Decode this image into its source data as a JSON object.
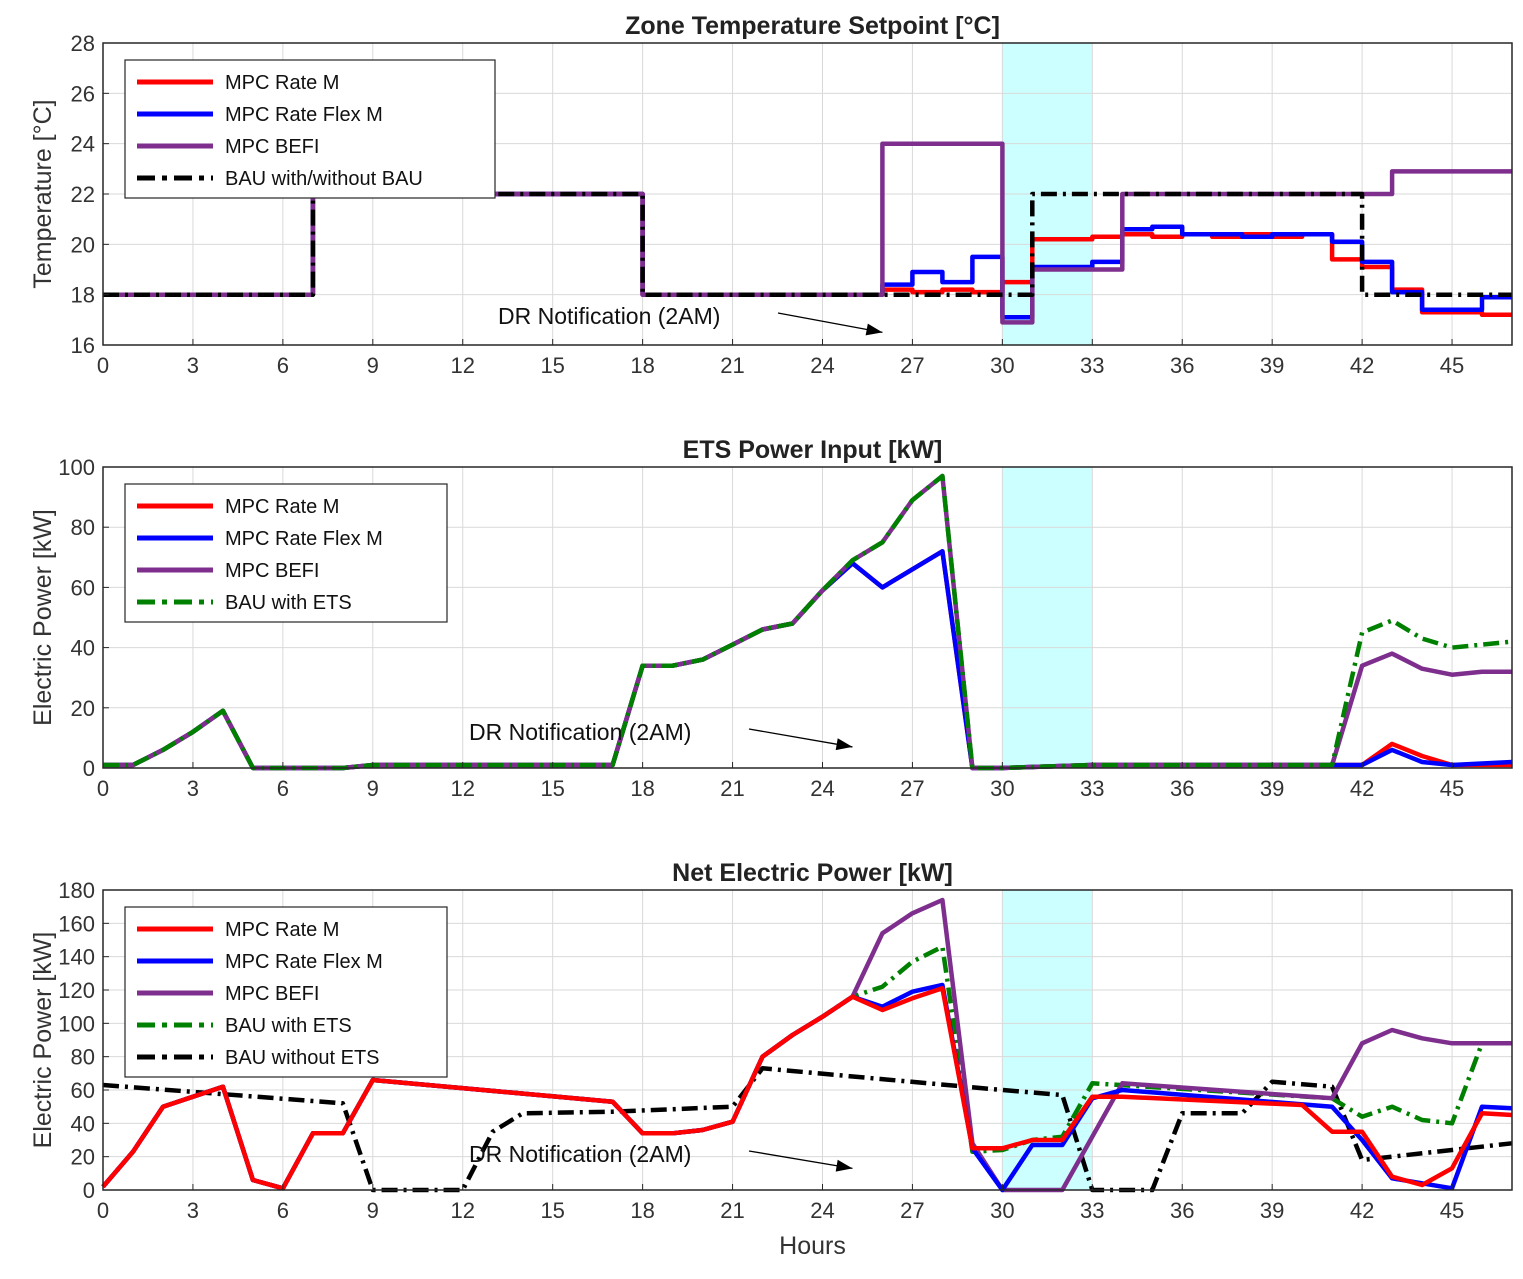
{
  "chart_data": [
    {
      "type": "line",
      "title": "Zone Temperature Setpoint [°C]",
      "xlabel": "",
      "ylabel": "Temperature [°C]",
      "xlim": [
        0,
        47
      ],
      "ylim": [
        16,
        28
      ],
      "xticks": [
        0,
        3,
        6,
        9,
        12,
        15,
        18,
        21,
        24,
        27,
        30,
        33,
        36,
        39,
        42,
        45
      ],
      "yticks": [
        16,
        18,
        20,
        22,
        24,
        26,
        28
      ],
      "shaded_region": [
        30,
        33
      ],
      "annotation": {
        "text": "DR Notification (2AM)",
        "arrow_to": [
          26,
          16.5
        ]
      },
      "legend": [
        "MPC Rate M",
        "MPC Rate Flex M",
        "MPC BEFI",
        "BAU with/without BAU"
      ],
      "series": [
        {
          "name": "MPC Rate M",
          "color": "#ff0000",
          "width": 4.5,
          "dash": "",
          "step": true,
          "x": [
            0,
            7,
            18,
            26,
            27,
            28,
            29,
            30,
            31,
            32,
            33,
            34,
            35,
            36,
            37,
            38,
            39,
            40,
            41,
            42,
            43,
            44,
            45,
            46,
            47
          ],
          "y": [
            18,
            22,
            18,
            18.2,
            18.1,
            18.2,
            18.1,
            18.5,
            20.2,
            20.2,
            20.3,
            20.4,
            20.3,
            20.4,
            20.3,
            20.4,
            20.3,
            20.4,
            19.4,
            19.1,
            18.2,
            17.3,
            17.3,
            17.2,
            17.2
          ]
        },
        {
          "name": "MPC Rate Flex M",
          "color": "#0000ff",
          "width": 4.5,
          "dash": "",
          "step": true,
          "x": [
            0,
            7,
            18,
            26,
            27,
            28,
            29,
            30,
            31,
            32,
            33,
            34,
            35,
            36,
            37,
            38,
            39,
            40,
            41,
            42,
            43,
            44,
            45,
            46,
            47
          ],
          "y": [
            18,
            22,
            18,
            18.4,
            18.9,
            18.5,
            19.5,
            17.1,
            19.1,
            19.1,
            19.3,
            20.6,
            20.7,
            20.4,
            20.4,
            20.3,
            20.4,
            20.4,
            20.1,
            19.3,
            18.1,
            17.4,
            17.4,
            17.9,
            17.9
          ]
        },
        {
          "name": "MPC BEFI",
          "color": "#7e2f8e",
          "width": 4.5,
          "dash": "",
          "step": true,
          "x": [
            0,
            7,
            18,
            26,
            30,
            31,
            33,
            34,
            42,
            43,
            47
          ],
          "y": [
            18,
            22,
            18,
            24,
            16.9,
            19,
            19,
            22,
            22,
            22.9,
            22.9
          ]
        },
        {
          "name": "BAU with/without BAU",
          "color": "#000000",
          "width": 4.5,
          "dash": "16,6,3,6",
          "step": true,
          "x": [
            0,
            7,
            18,
            30,
            31,
            42,
            47
          ],
          "y": [
            18,
            22,
            18,
            18,
            22,
            18,
            18
          ]
        }
      ]
    },
    {
      "type": "line",
      "title": "ETS Power Input [kW]",
      "xlabel": "",
      "ylabel": "Electric Power [kW]",
      "xlim": [
        0,
        47
      ],
      "ylim": [
        0,
        100
      ],
      "xticks": [
        0,
        3,
        6,
        9,
        12,
        15,
        18,
        21,
        24,
        27,
        30,
        33,
        36,
        39,
        42,
        45
      ],
      "yticks": [
        0,
        20,
        40,
        60,
        80,
        100
      ],
      "shaded_region": [
        30,
        33
      ],
      "annotation": {
        "text": "DR Notification (2AM)",
        "arrow_to": [
          25,
          7
        ]
      },
      "legend": [
        "MPC Rate M",
        "MPC Rate Flex M",
        "MPC BEFI",
        "BAU with ETS"
      ],
      "series": [
        {
          "name": "MPC Rate M",
          "color": "#ff0000",
          "width": 4.5,
          "dash": "",
          "step": false,
          "x": [
            0,
            1,
            2,
            3,
            4,
            5,
            6,
            7,
            8,
            9,
            17,
            18,
            19,
            20,
            21,
            22,
            23,
            24,
            25,
            26,
            27,
            28,
            29,
            30,
            33,
            41,
            42,
            43,
            44,
            45,
            47
          ],
          "y": [
            1,
            1,
            6,
            12,
            19,
            0,
            0,
            0,
            0,
            1,
            1,
            34,
            34,
            36,
            41,
            46,
            48,
            59,
            68,
            60,
            66,
            72,
            0,
            0,
            1,
            1,
            1,
            8,
            4,
            1,
            1
          ]
        },
        {
          "name": "MPC Rate Flex M",
          "color": "#0000ff",
          "width": 4.5,
          "dash": "",
          "step": false,
          "x": [
            0,
            1,
            2,
            3,
            4,
            5,
            6,
            7,
            8,
            9,
            17,
            18,
            19,
            20,
            21,
            22,
            23,
            24,
            25,
            26,
            27,
            28,
            29,
            30,
            33,
            41,
            42,
            43,
            44,
            45,
            47
          ],
          "y": [
            1,
            1,
            6,
            12,
            19,
            0,
            0,
            0,
            0,
            1,
            1,
            34,
            34,
            36,
            41,
            46,
            48,
            59,
            68,
            60,
            66,
            72,
            0,
            0,
            1,
            1,
            1,
            6,
            2,
            1,
            2
          ]
        },
        {
          "name": "MPC BEFI",
          "color": "#7e2f8e",
          "width": 4.5,
          "dash": "",
          "step": false,
          "x": [
            0,
            1,
            2,
            3,
            4,
            5,
            6,
            7,
            8,
            9,
            17,
            18,
            19,
            20,
            21,
            22,
            23,
            24,
            25,
            26,
            27,
            28,
            29,
            30,
            33,
            41,
            42,
            43,
            44,
            45,
            46,
            47
          ],
          "y": [
            1,
            1,
            6,
            12,
            19,
            0,
            0,
            0,
            0,
            1,
            1,
            34,
            34,
            36,
            41,
            46,
            48,
            59,
            69,
            75,
            89,
            97,
            0,
            0,
            1,
            1,
            34,
            38,
            33,
            31,
            32,
            32
          ]
        },
        {
          "name": "BAU with ETS",
          "color": "#008000",
          "width": 4.5,
          "dash": "16,6,3,6",
          "step": false,
          "x": [
            0,
            1,
            2,
            3,
            4,
            5,
            6,
            7,
            8,
            9,
            17,
            18,
            19,
            20,
            21,
            22,
            23,
            24,
            25,
            26,
            27,
            28,
            29,
            30,
            33,
            41,
            42,
            43,
            44,
            45,
            46,
            47
          ],
          "y": [
            1,
            1,
            6,
            12,
            19,
            0,
            0,
            0,
            0,
            1,
            1,
            34,
            34,
            36,
            41,
            46,
            48,
            59,
            69,
            75,
            89,
            97,
            0,
            0,
            1,
            1,
            45,
            49,
            43,
            40,
            41,
            42
          ]
        }
      ]
    },
    {
      "type": "line",
      "title": "Net Electric Power [kW]",
      "xlabel": "Hours",
      "ylabel": "Electric Power [kW]",
      "xlim": [
        0,
        47
      ],
      "ylim": [
        0,
        180
      ],
      "xticks": [
        0,
        3,
        6,
        9,
        12,
        15,
        18,
        21,
        24,
        27,
        30,
        33,
        36,
        39,
        42,
        45
      ],
      "yticks": [
        0,
        20,
        40,
        60,
        80,
        100,
        120,
        140,
        160,
        180
      ],
      "shaded_region": [
        30,
        33
      ],
      "annotation": {
        "text": "DR Notification (2AM)",
        "arrow_to": [
          25,
          13
        ]
      },
      "legend": [
        "MPC Rate M",
        "MPC Rate Flex M",
        "MPC BEFI",
        "BAU with ETS",
        "BAU without ETS"
      ],
      "series": [
        {
          "name": "BAU without ETS",
          "color": "#000000",
          "width": 4.5,
          "dash": "16,6,3,6",
          "step": false,
          "x": [
            0,
            8,
            9,
            12,
            13,
            14,
            17,
            21,
            22,
            30,
            32,
            33,
            35,
            36,
            38,
            39,
            41,
            42,
            47
          ],
          "y": [
            63,
            52,
            0,
            0,
            35,
            46,
            47,
            50,
            73,
            60,
            57,
            0,
            0,
            46,
            46,
            65,
            62,
            18,
            28
          ]
        },
        {
          "name": "BAU with ETS",
          "color": "#008000",
          "width": 4.5,
          "dash": "16,6,3,6",
          "step": false,
          "x": [
            0,
            1,
            2,
            3,
            4,
            5,
            6,
            7,
            8,
            9,
            17,
            18,
            19,
            20,
            21,
            22,
            23,
            24,
            25,
            26,
            27,
            28,
            29,
            30,
            31,
            32,
            33,
            41,
            42,
            43,
            44,
            45,
            46,
            47
          ],
          "y": [
            2,
            23,
            50,
            56,
            62,
            6,
            1,
            34,
            34,
            66,
            53,
            34,
            34,
            36,
            41,
            80,
            93,
            104,
            116,
            122,
            137,
            146,
            23,
            24,
            30,
            32,
            64,
            55,
            44,
            50,
            42,
            40,
            88,
            88
          ]
        },
        {
          "name": "MPC BEFI",
          "color": "#7e2f8e",
          "width": 4.5,
          "dash": "",
          "step": false,
          "x": [
            0,
            1,
            2,
            3,
            4,
            5,
            6,
            7,
            8,
            9,
            17,
            18,
            19,
            20,
            21,
            22,
            23,
            24,
            25,
            26,
            27,
            28,
            29,
            30,
            31,
            32,
            33,
            34,
            41,
            42,
            43,
            44,
            45,
            46,
            47
          ],
          "y": [
            2,
            23,
            50,
            56,
            62,
            6,
            1,
            34,
            34,
            66,
            53,
            34,
            34,
            36,
            41,
            80,
            93,
            104,
            116,
            154,
            166,
            174,
            28,
            0,
            0,
            0,
            32,
            64,
            55,
            88,
            96,
            91,
            88,
            88,
            88
          ]
        },
        {
          "name": "MPC Rate Flex M",
          "color": "#0000ff",
          "width": 4.5,
          "dash": "",
          "step": false,
          "x": [
            0,
            1,
            2,
            3,
            4,
            5,
            6,
            7,
            8,
            9,
            17,
            18,
            19,
            20,
            21,
            22,
            23,
            24,
            25,
            26,
            27,
            28,
            29,
            30,
            31,
            32,
            33,
            34,
            41,
            42,
            43,
            44,
            45,
            46,
            47
          ],
          "y": [
            2,
            23,
            50,
            56,
            62,
            6,
            1,
            34,
            34,
            66,
            53,
            34,
            34,
            36,
            41,
            80,
            93,
            104,
            116,
            110,
            119,
            123,
            25,
            0,
            27,
            27,
            55,
            60,
            50,
            30,
            7,
            4,
            1,
            50,
            49
          ]
        },
        {
          "name": "MPC Rate M",
          "color": "#ff0000",
          "width": 4.5,
          "dash": "",
          "step": false,
          "x": [
            0,
            1,
            2,
            3,
            4,
            5,
            6,
            7,
            8,
            9,
            17,
            18,
            19,
            20,
            21,
            22,
            23,
            24,
            25,
            26,
            27,
            28,
            29,
            30,
            31,
            32,
            33,
            34,
            40,
            41,
            42,
            43,
            44,
            45,
            46,
            47
          ],
          "y": [
            2,
            23,
            50,
            56,
            62,
            6,
            1,
            34,
            34,
            66,
            53,
            34,
            34,
            36,
            41,
            80,
            93,
            104,
            116,
            108,
            115,
            121,
            25,
            25,
            30,
            30,
            56,
            56,
            51,
            35,
            35,
            8,
            3,
            13,
            46,
            45
          ]
        }
      ]
    }
  ],
  "legend_colors": {
    "MPC Rate M": "#ff0000",
    "MPC Rate Flex M": "#0000ff",
    "MPC BEFI": "#7e2f8e",
    "BAU with ETS": "#008000",
    "BAU with/without BAU": "#000000",
    "BAU without ETS": "#000000"
  },
  "shade_color": "#ccffff"
}
